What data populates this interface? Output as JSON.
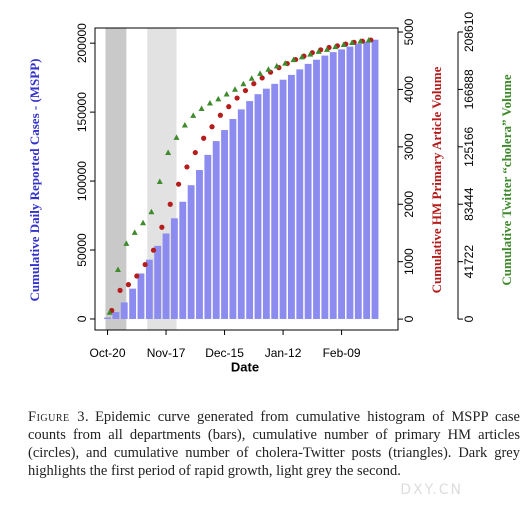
{
  "chart_data": {
    "type": "bar",
    "xlabel": "Date",
    "ylabel": "Cumulative Daily Reported Cases - (MSPP)",
    "y2label": "Cumulative HM Primary Article Volume",
    "y3label": "Cumulative Twitter “cholera” Volume",
    "xlim": [
      -6,
      139
    ],
    "xticks": [
      {
        "value": 0,
        "label": "Oct-20"
      },
      {
        "value": 28,
        "label": "Nov-17"
      },
      {
        "value": 56,
        "label": "Dec-15"
      },
      {
        "value": 84,
        "label": "Jan-12"
      },
      {
        "value": 112,
        "label": "Feb-09"
      }
    ],
    "ylim": [
      -8000,
      211000
    ],
    "yticks": [
      0,
      50000,
      100000,
      150000,
      200000
    ],
    "y2lim": [
      -190,
      5070
    ],
    "y2ticks": [
      0,
      1000,
      2000,
      3000,
      4000,
      5000
    ],
    "y3lim": [
      -7940,
      211500
    ],
    "y3ticks": [
      0,
      41722,
      83444,
      125166,
      166888,
      208610
    ],
    "highlights": [
      {
        "start": -1,
        "end": 9,
        "color": "#c9c9c9"
      },
      {
        "start": 19,
        "end": 33,
        "color": "#e2e2e2"
      }
    ],
    "series": [
      {
        "type": "bar",
        "color": "#8c8cf0",
        "axis": "y",
        "x": [
          0,
          4,
          8,
          12,
          16,
          20,
          24,
          28,
          32,
          36,
          40,
          44,
          48,
          52,
          56,
          60,
          64,
          68,
          72,
          76,
          80,
          84,
          88,
          92,
          96,
          100,
          104,
          108,
          112,
          116,
          120,
          124,
          128
        ],
        "values": [
          1000,
          5000,
          12000,
          22000,
          33000,
          43000,
          53000,
          62000,
          73000,
          85000,
          97000,
          108000,
          119000,
          129000,
          137000,
          145000,
          152000,
          158000,
          163000,
          167000,
          170500,
          173500,
          177000,
          181000,
          185000,
          188000,
          191000,
          193500,
          195500,
          197500,
          199500,
          201000,
          202500
        ]
      },
      {
        "type": "scatter",
        "marker": "circle",
        "color": "#b51c1c",
        "axis": "y2",
        "x": [
          2,
          6,
          10,
          14,
          18,
          22,
          26,
          30,
          34,
          38,
          42,
          46,
          50,
          54,
          58,
          62,
          66,
          70,
          74,
          78,
          82,
          86,
          90,
          94,
          98,
          102,
          106,
          110,
          114,
          118,
          122,
          126
        ],
        "values": [
          150,
          500,
          600,
          750,
          950,
          1200,
          1600,
          2000,
          2350,
          2650,
          2900,
          3150,
          3350,
          3550,
          3700,
          3850,
          3980,
          4100,
          4200,
          4300,
          4380,
          4450,
          4520,
          4580,
          4640,
          4690,
          4730,
          4760,
          4790,
          4820,
          4840,
          4860
        ]
      },
      {
        "type": "scatter",
        "marker": "triangle",
        "color": "#3f8a2c",
        "axis": "y3",
        "x": [
          1,
          5,
          9,
          13,
          17,
          21,
          25,
          29,
          33,
          37,
          41,
          45,
          49,
          53,
          57,
          61,
          65,
          69,
          73,
          77,
          81,
          85,
          89,
          93,
          97,
          101,
          105,
          109,
          113,
          117,
          121,
          125
        ],
        "values": [
          5000,
          36000,
          55000,
          63000,
          70000,
          78000,
          100000,
          121000,
          132000,
          141000,
          148000,
          153000,
          157000,
          160000,
          163500,
          167000,
          171000,
          175000,
          178500,
          181500,
          184000,
          186000,
          188500,
          190500,
          192500,
          194500,
          196000,
          198000,
          199500,
          201000,
          202000,
          202800
        ]
      }
    ]
  },
  "caption": {
    "label": "Figure 3.",
    "text": "Epidemic curve generated from cumulative histogram of MSPP case counts from all departments (bars), cumulative number of primary HM articles (circles), and cumulative number of cholera-Twitter posts (triangles). Dark grey highlights the first period of rapid growth, light grey the second."
  },
  "watermark": "DXY.CN"
}
